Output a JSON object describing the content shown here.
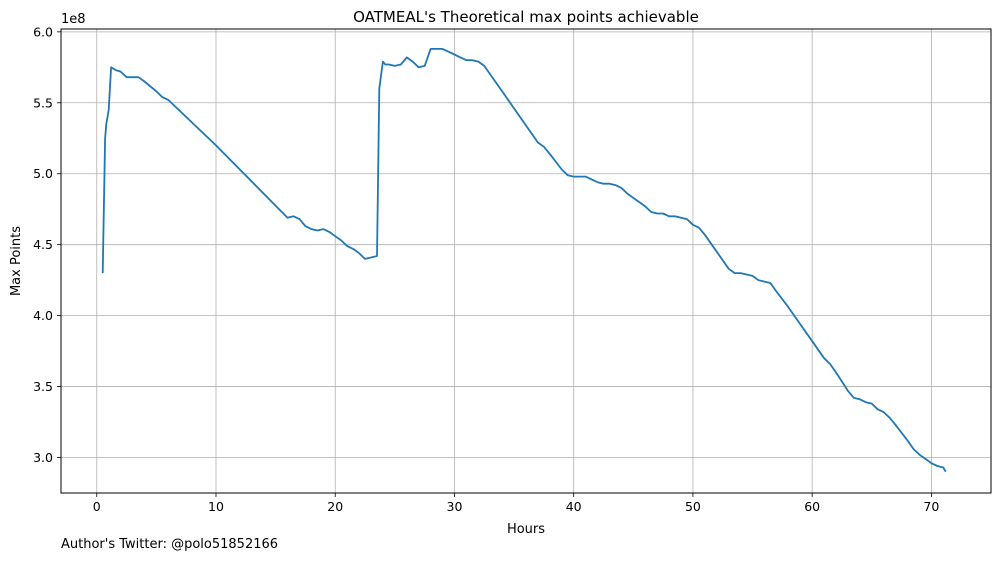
{
  "chart_data": {
    "type": "line",
    "title": "OATMEAL's Theoretical max points achievable",
    "xlabel": "Hours",
    "ylabel": "Max Points",
    "y_offset_label": "1e8",
    "xlim": [
      -3,
      75
    ],
    "ylim": [
      2.75,
      6.02
    ],
    "y_scale_factor": 100000000,
    "xticks": [
      0,
      10,
      20,
      30,
      40,
      50,
      60,
      70
    ],
    "xtick_labels": [
      "0",
      "10",
      "20",
      "30",
      "40",
      "50",
      "60",
      "70"
    ],
    "yticks": [
      3.0,
      3.5,
      4.0,
      4.5,
      5.0,
      5.5,
      6.0
    ],
    "ytick_labels": [
      "3.0",
      "3.5",
      "4.0",
      "4.5",
      "5.0",
      "5.5",
      "6.0"
    ],
    "grid": true,
    "line_color": "#1f77b4",
    "series": [
      {
        "x": [
          0.5,
          0.7,
          0.8,
          1.0,
          1.2,
          1.6,
          2.0,
          2.5,
          3.0,
          3.5,
          4.0,
          5.0,
          5.5,
          6.0,
          10.0,
          16.0,
          16.5,
          17.0,
          17.5,
          18.0,
          18.5,
          19.0,
          19.5,
          20.0,
          20.5,
          21.0,
          21.5,
          22.0,
          22.5,
          23.0,
          23.5,
          23.7,
          24.0,
          24.2,
          24.5,
          25.0,
          25.5,
          26.0,
          26.5,
          27.0,
          27.5,
          28.0,
          28.5,
          29.0,
          29.5,
          30.0,
          30.5,
          31.0,
          31.5,
          32.0,
          32.5,
          33.0,
          34.0,
          35.0,
          36.0,
          37.0,
          37.5,
          38.0,
          39.0,
          39.5,
          40.0,
          40.5,
          41.0,
          41.5,
          42.0,
          42.5,
          43.0,
          43.5,
          44.0,
          44.5,
          45.0,
          45.5,
          46.0,
          46.5,
          47.0,
          47.5,
          48.0,
          48.5,
          49.0,
          49.5,
          50.0,
          50.5,
          51.0,
          52.0,
          53.0,
          53.5,
          54.0,
          54.5,
          55.0,
          55.5,
          56.0,
          56.5,
          57.0,
          58.0,
          59.0,
          60.0,
          61.0,
          61.5,
          62.0,
          63.0,
          63.5,
          64.0,
          64.5,
          65.0,
          65.5,
          66.0,
          66.5,
          67.0,
          68.0,
          68.5,
          69.0,
          69.5,
          70.0,
          70.5,
          71.0,
          71.2
        ],
        "y": [
          4.3,
          5.25,
          5.35,
          5.45,
          5.75,
          5.73,
          5.72,
          5.68,
          5.68,
          5.68,
          5.65,
          5.58,
          5.54,
          5.52,
          5.2,
          4.69,
          4.7,
          4.68,
          4.63,
          4.61,
          4.6,
          4.61,
          4.59,
          4.56,
          4.53,
          4.49,
          4.47,
          4.44,
          4.4,
          4.41,
          4.42,
          5.6,
          5.79,
          5.77,
          5.77,
          5.76,
          5.77,
          5.82,
          5.79,
          5.75,
          5.76,
          5.88,
          5.88,
          5.88,
          5.86,
          5.84,
          5.82,
          5.8,
          5.8,
          5.79,
          5.76,
          5.7,
          5.58,
          5.46,
          5.34,
          5.22,
          5.19,
          5.14,
          5.03,
          4.99,
          4.98,
          4.98,
          4.98,
          4.96,
          4.94,
          4.93,
          4.93,
          4.92,
          4.9,
          4.86,
          4.83,
          4.8,
          4.77,
          4.73,
          4.72,
          4.72,
          4.7,
          4.7,
          4.69,
          4.68,
          4.64,
          4.62,
          4.57,
          4.45,
          4.33,
          4.3,
          4.3,
          4.29,
          4.28,
          4.25,
          4.24,
          4.23,
          4.17,
          4.06,
          3.94,
          3.82,
          3.7,
          3.66,
          3.6,
          3.47,
          3.42,
          3.41,
          3.39,
          3.38,
          3.34,
          3.32,
          3.28,
          3.23,
          3.12,
          3.06,
          3.02,
          2.99,
          2.96,
          2.94,
          2.93,
          2.9
        ]
      }
    ]
  },
  "footer": {
    "credit": "Author's Twitter: @polo51852166"
  }
}
